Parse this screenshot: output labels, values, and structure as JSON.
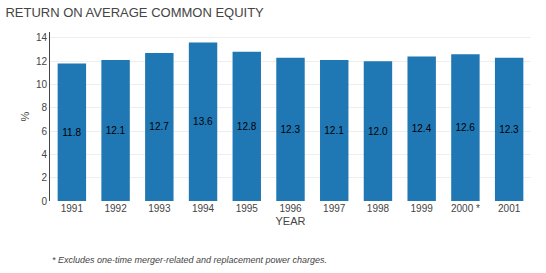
{
  "chart_data": {
    "type": "bar",
    "title": "RETURN ON AVERAGE COMMON EQUITY",
    "xlabel": "YEAR",
    "ylabel": "%",
    "categories": [
      "1991",
      "1992",
      "1993",
      "1994",
      "1995",
      "1996",
      "1997",
      "1998",
      "1999",
      "2000 *",
      "2001"
    ],
    "values": [
      11.8,
      12.1,
      12.7,
      13.6,
      12.8,
      12.3,
      12.1,
      12.0,
      12.4,
      12.6,
      12.3
    ],
    "value_labels": [
      "11.8",
      "12.1",
      "12.7",
      "13.6",
      "12.8",
      "12.3",
      "12.1",
      "12.0",
      "12.4",
      "12.6",
      "12.3"
    ],
    "data_labels": true,
    "ylim": [
      0,
      14.5
    ],
    "yticks": [
      0,
      2,
      4,
      6,
      8,
      10,
      12,
      14
    ],
    "grid": true,
    "annotations": [
      "* Excludes one-time merger-related and replacement power charges."
    ]
  }
}
